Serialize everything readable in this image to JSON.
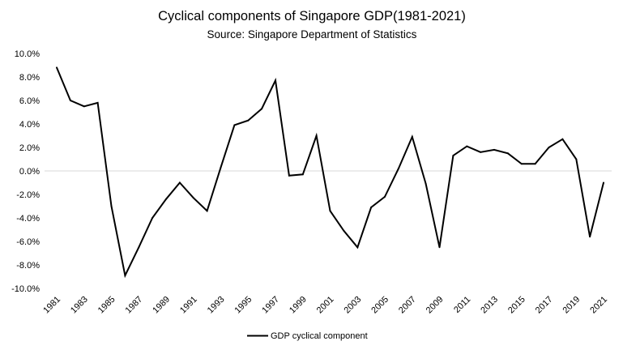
{
  "chart_data": {
    "type": "line",
    "title": "Cyclical components of Singapore GDP(1981-2021)",
    "subtitle": "Source: Singapore Department of Statistics",
    "xlabel": "",
    "ylabel": "",
    "ylim": [
      -10,
      10
    ],
    "y_ticks": [
      10,
      8,
      6,
      4,
      2,
      0,
      -2,
      -4,
      -6,
      -8,
      -10
    ],
    "y_tick_labels": [
      "10.0%",
      "8.0%",
      "6.0%",
      "4.0%",
      "2.0%",
      "0.0%",
      "-2.0%",
      "-4.0%",
      "-6.0%",
      "-8.0%",
      "-10.0%"
    ],
    "x_tick_labels": [
      "1981",
      "1983",
      "1985",
      "1987",
      "1989",
      "1991",
      "1993",
      "1995",
      "1997",
      "1999",
      "2001",
      "2003",
      "2005",
      "2007",
      "2009",
      "2011",
      "2013",
      "2015",
      "2017",
      "2019",
      "2021"
    ],
    "grid": "horizontal zero line only",
    "legend": "bottom-center",
    "x": [
      1981,
      1982,
      1983,
      1984,
      1985,
      1986,
      1987,
      1988,
      1989,
      1990,
      1991,
      1992,
      1993,
      1994,
      1995,
      1996,
      1997,
      1998,
      1999,
      2000,
      2001,
      2002,
      2003,
      2004,
      2005,
      2006,
      2007,
      2008,
      2009,
      2010,
      2011,
      2012,
      2013,
      2014,
      2015,
      2016,
      2017,
      2018,
      2019,
      2020,
      2021
    ],
    "series": [
      {
        "name": "GDP cyclical component",
        "color": "#000000",
        "values": [
          8.8,
          6.0,
          5.5,
          5.8,
          -3.0,
          -8.9,
          -6.5,
          -4.0,
          -2.4,
          -1.0,
          -2.3,
          -3.4,
          0.3,
          3.9,
          4.3,
          5.3,
          7.7,
          -0.4,
          -0.3,
          3.0,
          -3.4,
          -5.1,
          -6.5,
          -3.1,
          -2.2,
          0.2,
          2.9,
          -1.1,
          -6.5,
          1.3,
          2.1,
          1.6,
          1.8,
          1.5,
          0.6,
          0.6,
          2.0,
          2.7,
          1.0,
          -5.6,
          -1.0
        ]
      }
    ]
  }
}
